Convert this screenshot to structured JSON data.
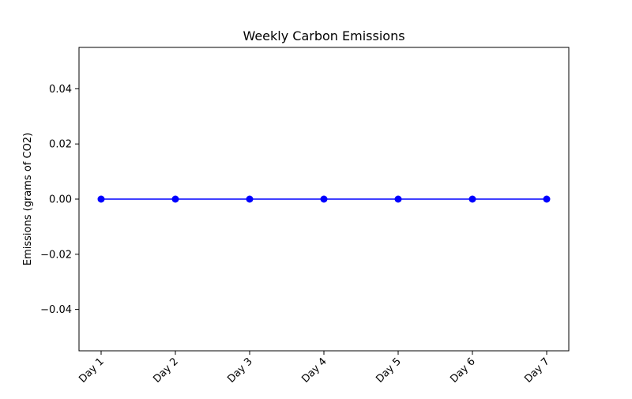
{
  "chart_data": {
    "type": "line",
    "title": "Weekly Carbon Emissions",
    "xlabel": "",
    "ylabel": "Emissions (grams of CO2)",
    "categories": [
      "Day 1",
      "Day 2",
      "Day 3",
      "Day 4",
      "Day 5",
      "Day 6",
      "Day 7"
    ],
    "series": [
      {
        "values": [
          0,
          0,
          0,
          0,
          0,
          0,
          0
        ],
        "color": "#0000ff",
        "marker": "circle"
      }
    ],
    "ylim": [
      -0.055,
      0.055
    ],
    "yticks": [
      -0.04,
      -0.02,
      0.0,
      0.02,
      0.04
    ],
    "ytick_labels": [
      "−0.04",
      "−0.02",
      "0.00",
      "0.02",
      "0.04"
    ],
    "grid": false,
    "legend": "none"
  }
}
